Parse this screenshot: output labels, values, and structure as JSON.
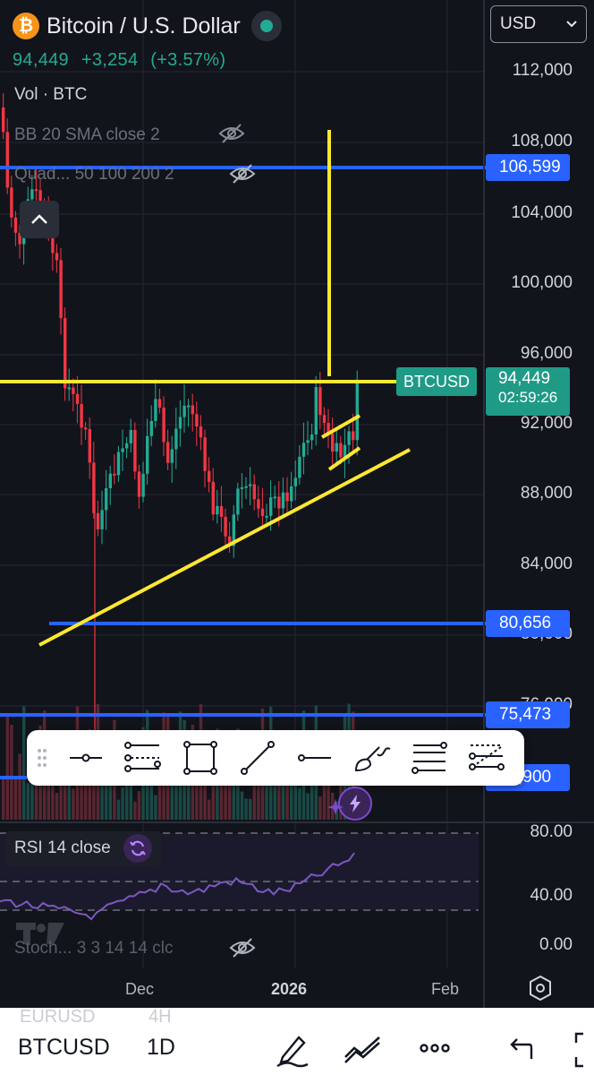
{
  "header": {
    "logo_glyph": "₿",
    "pair": "Bitcoin / U.S. Dollar",
    "price": "94,449",
    "change": "+3,254",
    "change_pct": "(+3.57%)",
    "status_color": "#22ab94"
  },
  "currency_select": {
    "value": "USD"
  },
  "indicators": {
    "vol": "Vol · BTC",
    "bb": "BB 20 SMA close 2",
    "quad": "Quad... 50 100 200 2",
    "stoch": "Stoch... 3 3 14 14 clc",
    "rsi": "RSI 14 close"
  },
  "price_axis": [
    "112,000",
    "108,000",
    "104,000",
    "100,000",
    "96,000",
    "92,000",
    "88,000",
    "84,000",
    "80,000",
    "76,000"
  ],
  "rsi_axis": [
    "80.00",
    "40.00",
    "0.00"
  ],
  "levels": [
    "106,599",
    "80,656",
    "75,473",
    "71,900"
  ],
  "current": {
    "symbol_tag": "BTCUSD",
    "price": "94,449",
    "countdown": "02:59:26"
  },
  "time_axis": [
    "Dec",
    "2026",
    "Feb"
  ],
  "toolbar": {
    "tools": [
      "horizontal-ray-tool",
      "parallel-channel-tool",
      "rectangle-tool",
      "trend-line-tool",
      "horizontal-line-tool",
      "brush-tool",
      "fib-retracement-tool",
      "long-position-tool"
    ]
  },
  "bottom_bar": {
    "ghost_symbol": "EURUSD",
    "ghost_interval": "4H",
    "symbol": "BTCUSD",
    "interval": "1D"
  },
  "colors": {
    "up": "#22ab94",
    "down": "#f23645",
    "level": "#2962ff",
    "drawing": "#ffe830",
    "rsi": "#7e57c2"
  }
}
